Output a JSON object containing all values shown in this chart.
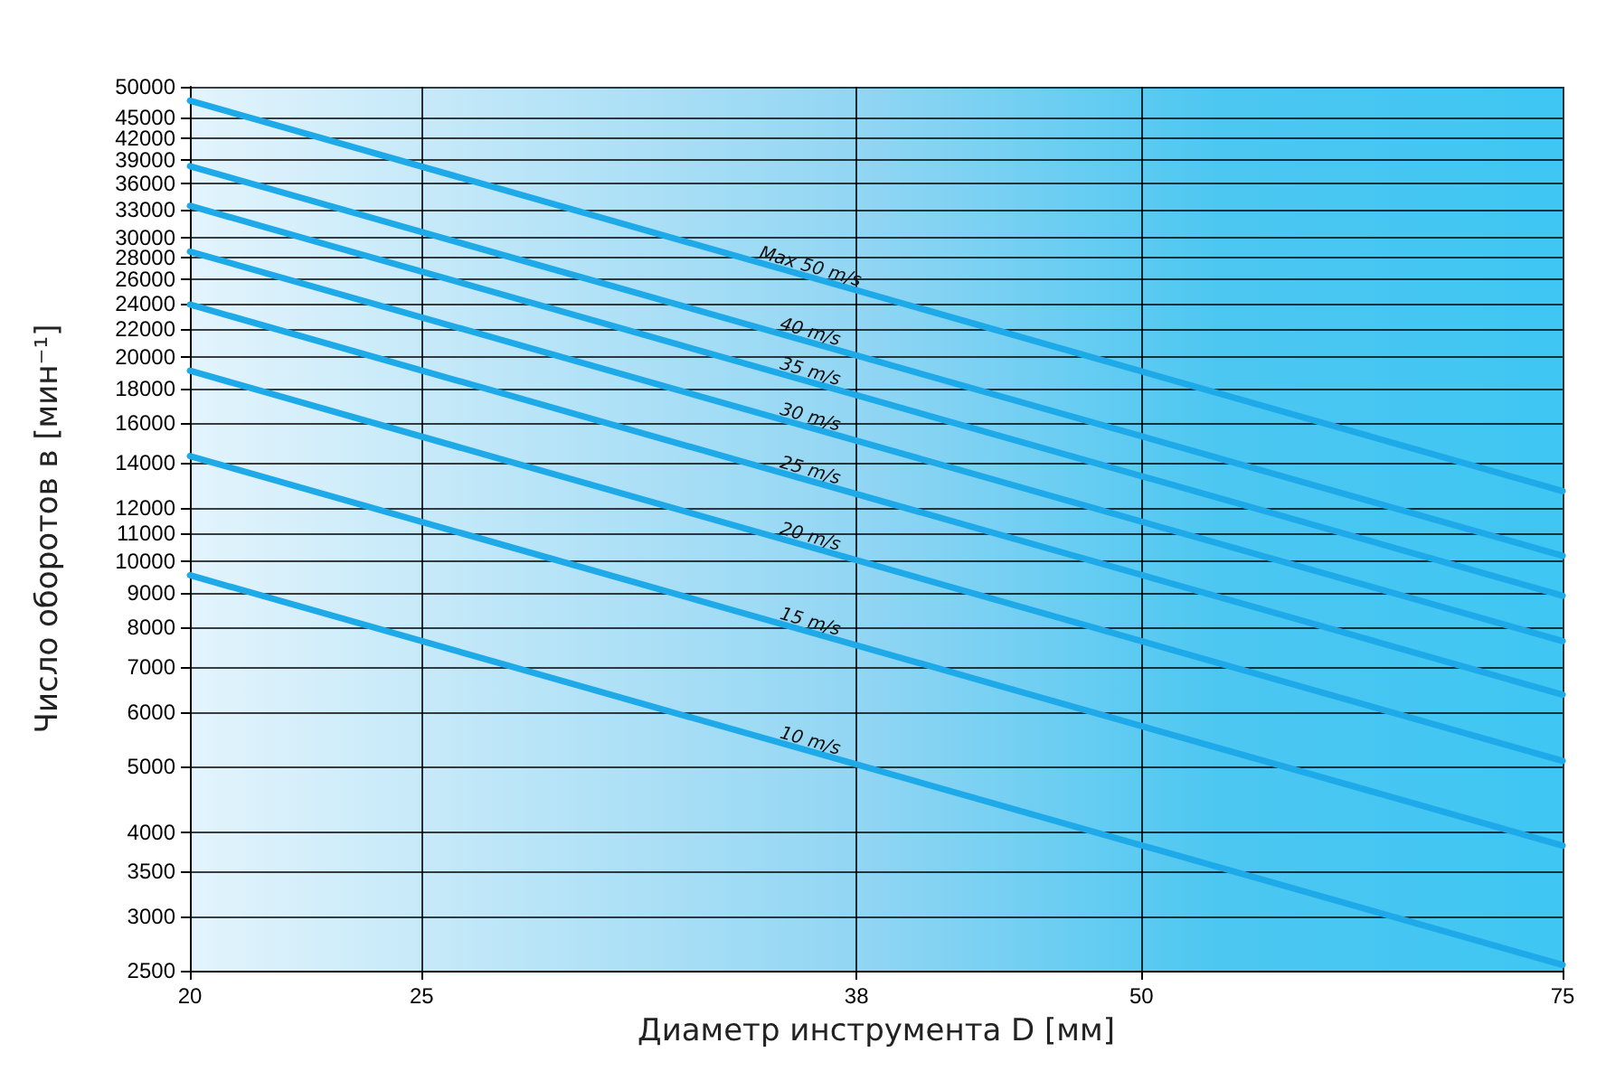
{
  "chart_data": {
    "type": "line",
    "xlabel": "Диаметр инструмента D [мм]",
    "ylabel": "Число оборотов в [мин⁻¹]",
    "log": "xy",
    "grid": true,
    "legend": false,
    "marker": "none",
    "line_style": "solid",
    "x": [
      20,
      75
    ],
    "xlim": [
      20,
      75
    ],
    "xticks": [
      20,
      25,
      38,
      50,
      75
    ],
    "ylim": [
      2500,
      50000
    ],
    "yticks": [
      2500,
      3000,
      3500,
      4000,
      5000,
      6000,
      7000,
      8000,
      9000,
      10000,
      11000,
      12000,
      14000,
      16000,
      18000,
      20000,
      22000,
      24000,
      26000,
      28000,
      30000,
      33000,
      36000,
      39000,
      42000,
      45000,
      50000
    ],
    "series": [
      {
        "name": "Max 50 m/s",
        "color": "#1ea9e8",
        "values": [
          47700,
          12700
        ]
      },
      {
        "name": "40 m/s",
        "color": "#1ea9e8",
        "values": [
          38200,
          10200
        ]
      },
      {
        "name": "35 m/s",
        "color": "#1ea9e8",
        "values": [
          33400,
          8910
        ]
      },
      {
        "name": "30 m/s",
        "color": "#1ea9e8",
        "values": [
          28600,
          7640
        ]
      },
      {
        "name": "25 m/s",
        "color": "#1ea9e8",
        "values": [
          23900,
          6370
        ]
      },
      {
        "name": "20 m/s",
        "color": "#1ea9e8",
        "values": [
          19100,
          5090
        ]
      },
      {
        "name": "15 m/s",
        "color": "#1ea9e8",
        "values": [
          14300,
          3820
        ]
      },
      {
        "name": "10 m/s",
        "color": "#1ea9e8",
        "values": [
          9550,
          2550
        ]
      }
    ]
  }
}
